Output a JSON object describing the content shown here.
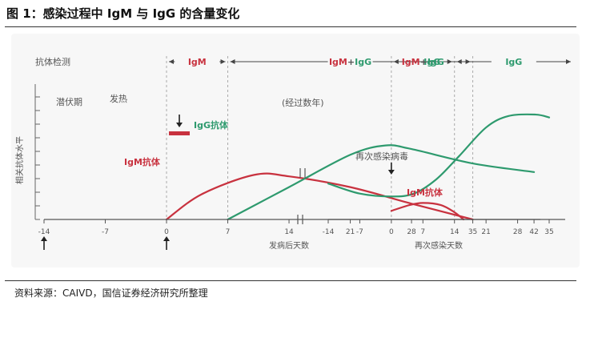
{
  "figure": {
    "title": "图 1：感染过程中 IgM 与 IgG 的含量变化",
    "source": "资料来源：CAIVD，国信证券经济研究所整理"
  },
  "colors": {
    "igm": "#c8323f",
    "igg": "#2e9a6e",
    "arrow": "#444444",
    "grid": "#b0b0b0",
    "text": "#555555",
    "plot_bg": "#f7f7f7"
  },
  "chart_data": {
    "type": "line",
    "ylabel": "相关抗体水平",
    "phases_label": "抗体检测",
    "phases": [
      {
        "label": "IgM",
        "color": "igm"
      },
      {
        "label": "IgM+IgG",
        "parts": [
          {
            "t": "IgM",
            "c": "igm"
          },
          {
            "t": "+",
            "c": "text"
          },
          {
            "t": "IgG",
            "c": "igg"
          }
        ]
      },
      {
        "label": "IgG",
        "color": "igg"
      },
      {
        "label": "IgM+IgG",
        "parts": [
          {
            "t": "IgM",
            "c": "igm"
          },
          {
            "t": "+",
            "c": "text"
          },
          {
            "t": "IgG",
            "c": "igg"
          }
        ]
      },
      {
        "label": "IgG",
        "color": "igg"
      }
    ],
    "annotations": {
      "incubation": "潜伏期",
      "fever": "发热",
      "years": "(经过数年)",
      "reinfection": "再次感染病毒",
      "igm_label_1": "IgM抗体",
      "igg_label_1": "IgG抗体",
      "igm_label_2": "IgM抗体"
    },
    "panels": [
      {
        "xlabel": "发病后天数",
        "xticks": [
          -14,
          -7,
          0,
          7,
          14,
          21,
          28,
          35,
          42
        ],
        "xlim": [
          -14,
          42
        ],
        "phase_boundaries": [
          0,
          7,
          35
        ],
        "series": [
          {
            "key": "igm",
            "values": [
              [
                0,
                0
              ],
              [
                4,
                3.5
              ],
              [
                10,
                6.2
              ],
              [
                14,
                6.0
              ],
              [
                21,
                4.5
              ],
              [
                28,
                2.2
              ],
              [
                35,
                0
              ]
            ]
          },
          {
            "key": "igg",
            "values": [
              [
                7,
                0
              ],
              [
                14,
                4.5
              ],
              [
                21,
                9
              ],
              [
                25,
                10.3
              ],
              [
                28,
                9.8
              ],
              [
                35,
                7.8
              ],
              [
                42,
                6.6
              ]
            ]
          }
        ]
      },
      {
        "xlabel": "再次感染天数",
        "xticks": [
          -14,
          -7,
          0,
          7,
          14,
          21,
          28,
          35
        ],
        "xlim": [
          -14,
          35
        ],
        "phase_boundaries": [
          0,
          14
        ],
        "series": [
          {
            "key": "igg",
            "values": [
              [
                -14,
                5.0
              ],
              [
                -7,
                3.6
              ],
              [
                0,
                3.2
              ],
              [
                5,
                3.6
              ],
              [
                10,
                5.6
              ],
              [
                15,
                8.8
              ],
              [
                21,
                12.8
              ],
              [
                26,
                14.4
              ],
              [
                32,
                14.6
              ],
              [
                35,
                14.2
              ]
            ]
          },
          {
            "key": "igm",
            "values": [
              [
                0,
                1.2
              ],
              [
                4,
                2.0
              ],
              [
                7,
                2.3
              ],
              [
                11,
                2.0
              ],
              [
                14,
                1.0
              ],
              [
                16,
                0
              ]
            ]
          }
        ]
      }
    ],
    "ylim": [
      0,
      16
    ]
  }
}
